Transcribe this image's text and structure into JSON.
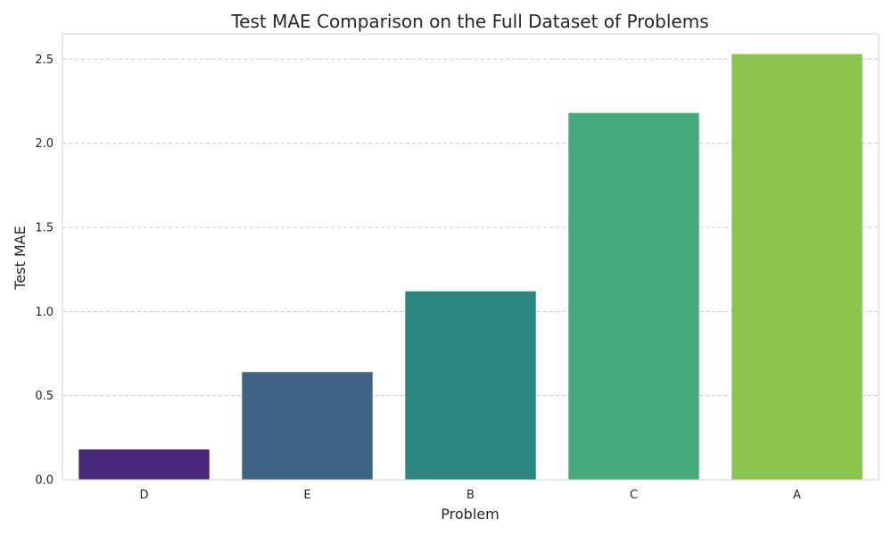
{
  "chart_data": {
    "type": "bar",
    "title": "Test MAE Comparison on the Full Dataset of Problems",
    "xlabel": "Problem",
    "ylabel": "Test MAE",
    "categories": [
      "D",
      "E",
      "B",
      "C",
      "A"
    ],
    "values": [
      0.18,
      0.64,
      1.12,
      2.18,
      2.53
    ],
    "colors": [
      "#482878",
      "#3e6485",
      "#2a8480",
      "#44aa78",
      "#8bc34f"
    ],
    "ylim": [
      0,
      2.65
    ],
    "yticks": [
      0.0,
      0.5,
      1.0,
      1.5,
      2.0,
      2.5
    ],
    "ytick_labels": [
      "0.0",
      "0.5",
      "1.0",
      "1.5",
      "2.0",
      "2.5"
    ],
    "grid": "y-dashed",
    "legend": "none"
  }
}
